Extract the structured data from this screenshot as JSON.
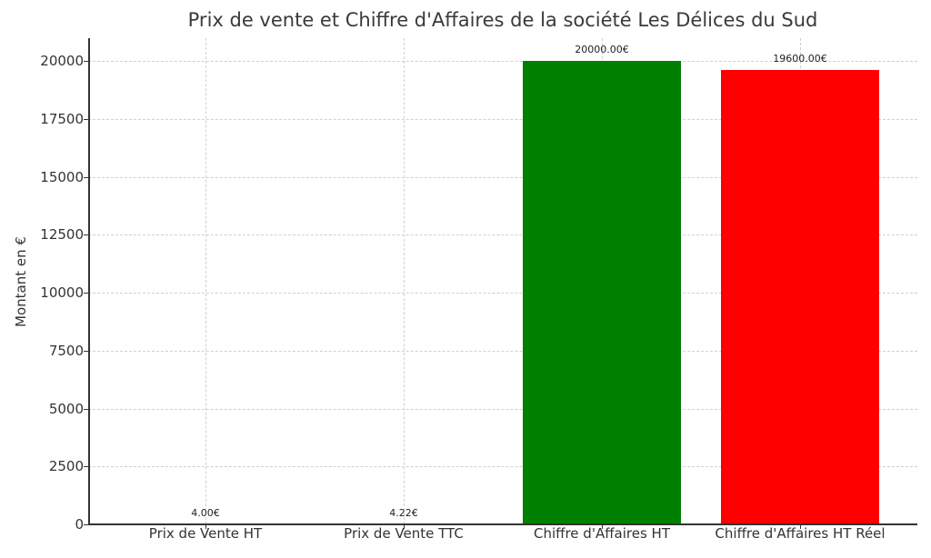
{
  "chart_data": {
    "type": "bar",
    "title": "Prix de vente et Chiffre d'Affaires de la société Les Délices du Sud",
    "xlabel": "",
    "ylabel": "Montant en €",
    "categories": [
      "Prix de Vente HT",
      "Prix de Vente TTC",
      "Chiffre d'Affaires HT",
      "Chiffre d'Affaires HT Réel"
    ],
    "values": [
      4.0,
      4.22,
      20000.0,
      19600.0
    ],
    "value_labels": [
      "4.00€",
      "4.22€",
      "20000.00€",
      "19600.00€"
    ],
    "colors": [
      "#0000ff",
      "#ffa500",
      "#008000",
      "#ff0000"
    ],
    "ylim": [
      0,
      21000
    ],
    "yticks": [
      "0",
      "2500",
      "5000",
      "7500",
      "10000",
      "12500",
      "15000",
      "17500",
      "20000"
    ],
    "grid": true,
    "legend": null
  }
}
